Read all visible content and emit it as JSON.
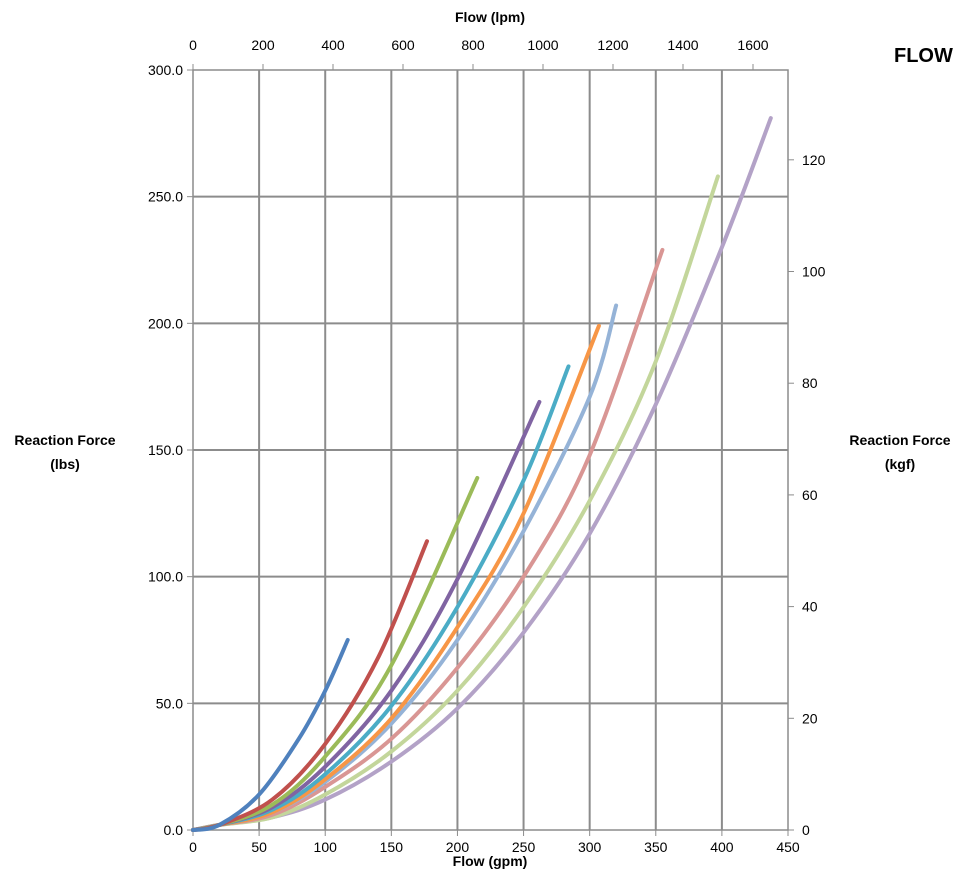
{
  "chart_data": {
    "type": "line",
    "title": "FLOW",
    "xlabel": "Flow (gpm)",
    "x2label": "Flow (lpm)",
    "ylabel": [
      "Reaction Force",
      "(lbs)"
    ],
    "y2label": [
      "Reaction Force",
      "(kgf)"
    ],
    "xlim": [
      0,
      450
    ],
    "x2lim": [
      0,
      1700
    ],
    "ylim": [
      0,
      300
    ],
    "y2lim": [
      0,
      136.08
    ],
    "x_ticks": [
      "0",
      "50",
      "100",
      "150",
      "200",
      "250",
      "300",
      "350",
      "400",
      "450"
    ],
    "x2_ticks": [
      "0",
      "200",
      "400",
      "600",
      "800",
      "1000",
      "1200",
      "1400",
      "1600"
    ],
    "y_ticks": [
      "0.0",
      "50.0",
      "100.0",
      "150.0",
      "200.0",
      "250.0",
      "300.0"
    ],
    "y2_ticks": [
      "0",
      "20",
      "40",
      "60",
      "80",
      "100",
      "120"
    ],
    "grid": true,
    "series": [
      {
        "color": "#4f81bd",
        "x": [
          0,
          20,
          50,
          80,
          100,
          117
        ],
        "y": [
          0,
          2,
          14,
          36,
          55,
          75
        ]
      },
      {
        "color": "#c0504d",
        "x": [
          0,
          20,
          60,
          100,
          140,
          177
        ],
        "y": [
          0,
          2,
          12,
          34,
          68,
          114
        ]
      },
      {
        "color": "#9bbb59",
        "x": [
          0,
          20,
          60,
          100,
          150,
          215
        ],
        "y": [
          0,
          2,
          10,
          29,
          65,
          139
        ]
      },
      {
        "color": "#8064a2",
        "x": [
          0,
          20,
          60,
          100,
          150,
          200,
          262
        ],
        "y": [
          0,
          2,
          9,
          25,
          55,
          99,
          169
        ]
      },
      {
        "color": "#4bacc6",
        "x": [
          0,
          20,
          60,
          100,
          150,
          200,
          250,
          284
        ],
        "y": [
          0,
          2,
          8,
          22,
          49,
          88,
          138,
          183
        ]
      },
      {
        "color": "#f79646",
        "x": [
          0,
          20,
          60,
          100,
          150,
          200,
          250,
          307
        ],
        "y": [
          0,
          2,
          7,
          20,
          44,
          80,
          125,
          199
        ]
      },
      {
        "color": "#95b3d7",
        "x": [
          0,
          20,
          60,
          100,
          150,
          200,
          250,
          300,
          320
        ],
        "y": [
          0,
          2,
          7,
          19,
          42,
          75,
          118,
          171,
          207
        ]
      },
      {
        "color": "#d99694",
        "x": [
          0,
          20,
          60,
          100,
          150,
          200,
          250,
          300,
          355
        ],
        "y": [
          0,
          2,
          6,
          17,
          36,
          64,
          100,
          148,
          229
        ]
      },
      {
        "color": "#c3d69b",
        "x": [
          0,
          20,
          60,
          100,
          150,
          200,
          250,
          300,
          350,
          397
        ],
        "y": [
          0,
          2,
          5,
          14,
          31,
          55,
          88,
          130,
          185,
          258
        ]
      },
      {
        "color": "#b3a2c7",
        "x": [
          0,
          20,
          60,
          100,
          150,
          200,
          250,
          300,
          350,
          400,
          437
        ],
        "y": [
          0,
          2,
          5,
          12,
          27,
          48,
          78,
          117,
          168,
          230,
          281
        ]
      }
    ]
  }
}
